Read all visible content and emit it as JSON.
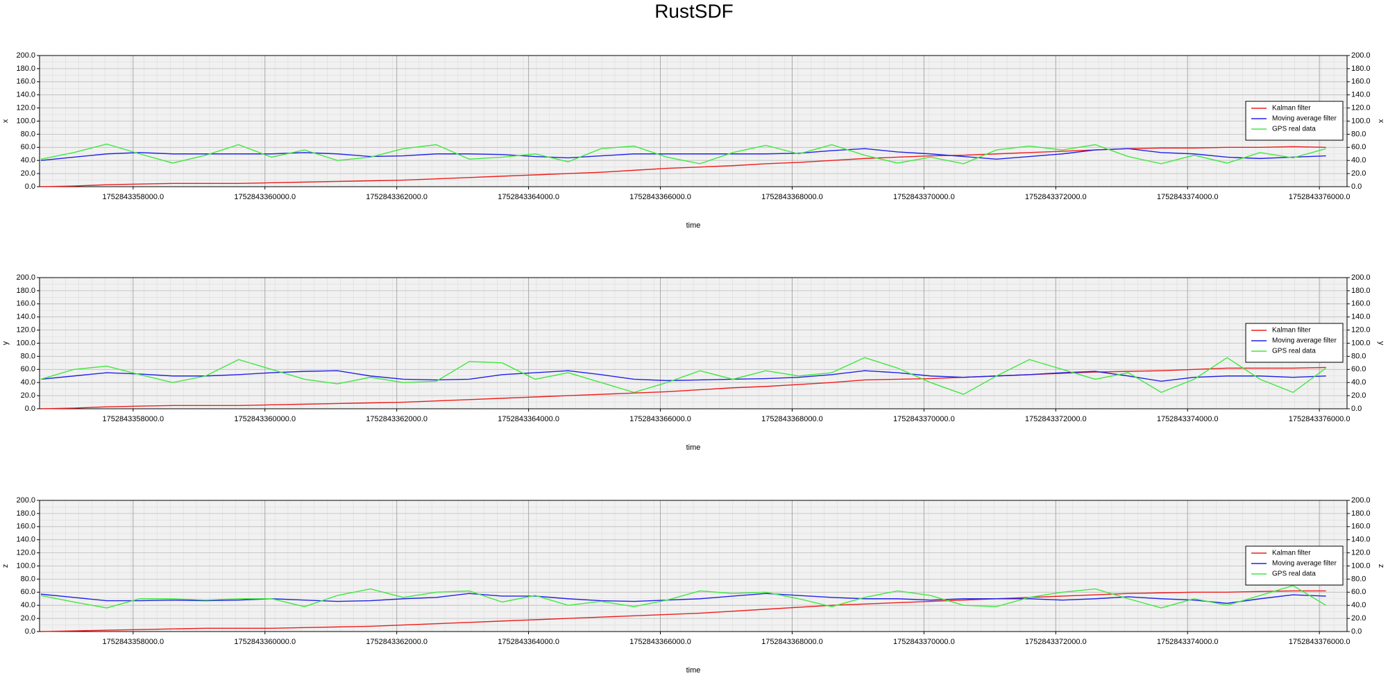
{
  "title": "RustSDF",
  "chart_data": [
    {
      "type": "line",
      "ylabel": "x",
      "y2label": "x",
      "xlabel": "time",
      "grid": true,
      "legend": "right",
      "x": [
        1752843356600,
        1752843357100,
        1752843357600,
        1752843358100,
        1752843358600,
        1752843359100,
        1752843359600,
        1752843360100,
        1752843360600,
        1752843361100,
        1752843361600,
        1752843362100,
        1752843362600,
        1752843363100,
        1752843363600,
        1752843364100,
        1752843364600,
        1752843365100,
        1752843365600,
        1752843366100,
        1752843366600,
        1752843367100,
        1752843367600,
        1752843368100,
        1752843368600,
        1752843369100,
        1752843369600,
        1752843370100,
        1752843370600,
        1752843371100,
        1752843371600,
        1752843372100,
        1752843372600,
        1752843373100,
        1752843373600,
        1752843374100,
        1752843374600,
        1752843375100,
        1752843375600,
        1752843376100
      ],
      "xlim": [
        1752843356580,
        1752843376420
      ],
      "xticks": [
        {
          "value": 1752843358000,
          "label": "1752843358000.0"
        },
        {
          "value": 1752843360000,
          "label": "1752843360000.0"
        },
        {
          "value": 1752843362000,
          "label": "1752843362000.0"
        },
        {
          "value": 1752843364000,
          "label": "1752843364000.0"
        },
        {
          "value": 1752843366000,
          "label": "1752843366000.0"
        },
        {
          "value": 1752843368000,
          "label": "1752843368000.0"
        },
        {
          "value": 1752843370000,
          "label": "1752843370000.0"
        },
        {
          "value": 1752843372000,
          "label": "1752843372000.0"
        },
        {
          "value": 1752843374000,
          "label": "1752843374000.0"
        },
        {
          "value": 1752843376000,
          "label": "1752843376000.0"
        }
      ],
      "ylim": [
        0,
        200
      ],
      "yticks": [
        {
          "value": 0,
          "label": "0.0"
        },
        {
          "value": 20,
          "label": "20.0"
        },
        {
          "value": 40,
          "label": "40.0"
        },
        {
          "value": 60,
          "label": "60.0"
        },
        {
          "value": 80,
          "label": "80.0"
        },
        {
          "value": 100,
          "label": "100.0"
        },
        {
          "value": 120,
          "label": "120.0"
        },
        {
          "value": 140,
          "label": "140.0"
        },
        {
          "value": 160,
          "label": "160.0"
        },
        {
          "value": 180,
          "label": "180.0"
        },
        {
          "value": 200,
          "label": "200.0"
        }
      ],
      "y2lim": [
        0,
        200
      ],
      "y2ticks": [
        {
          "value": 0,
          "label": "0.0"
        },
        {
          "value": 20,
          "label": "20.0"
        },
        {
          "value": 40,
          "label": "40.0"
        },
        {
          "value": 60,
          "label": "60.0"
        },
        {
          "value": 80,
          "label": "80.0"
        },
        {
          "value": 100,
          "label": "100.0"
        },
        {
          "value": 120,
          "label": "120.0"
        },
        {
          "value": 140,
          "label": "140.0"
        },
        {
          "value": 160,
          "label": "160.0"
        },
        {
          "value": 180,
          "label": "180.0"
        },
        {
          "value": 200,
          "label": "200.0"
        }
      ],
      "series": [
        {
          "name": "Kalman filter",
          "color": "#ee1c1c",
          "values": [
            0,
            1,
            3,
            4,
            5,
            5,
            5,
            6,
            7,
            8,
            9,
            10,
            12,
            14,
            16,
            18,
            20,
            22,
            25,
            28,
            30,
            32,
            35,
            37,
            40,
            43,
            45,
            47,
            48,
            50,
            52,
            54,
            56,
            58,
            59,
            59,
            60,
            60,
            61,
            60
          ]
        },
        {
          "name": "Moving average filter",
          "color": "#2020e8",
          "values": [
            40,
            45,
            50,
            52,
            50,
            50,
            50,
            50,
            52,
            50,
            46,
            47,
            50,
            50,
            49,
            46,
            44,
            47,
            50,
            50,
            50,
            50,
            50,
            51,
            55,
            58,
            53,
            50,
            46,
            42,
            46,
            50,
            56,
            58,
            52,
            50,
            45,
            43,
            45,
            47
          ]
        },
        {
          "name": "GPS real data",
          "color": "#3ee83e",
          "values": [
            42,
            52,
            65,
            50,
            36,
            48,
            64,
            45,
            56,
            40,
            45,
            58,
            64,
            42,
            45,
            50,
            38,
            58,
            62,
            45,
            35,
            52,
            63,
            50,
            64,
            48,
            36,
            45,
            35,
            56,
            62,
            56,
            64,
            46,
            35,
            48,
            36,
            52,
            44,
            58
          ]
        }
      ]
    },
    {
      "type": "line",
      "ylabel": "y",
      "y2label": "y",
      "xlabel": "time",
      "grid": true,
      "legend": "right",
      "x": [
        1752843356600,
        1752843357100,
        1752843357600,
        1752843358100,
        1752843358600,
        1752843359100,
        1752843359600,
        1752843360100,
        1752843360600,
        1752843361100,
        1752843361600,
        1752843362100,
        1752843362600,
        1752843363100,
        1752843363600,
        1752843364100,
        1752843364600,
        1752843365100,
        1752843365600,
        1752843366100,
        1752843366600,
        1752843367100,
        1752843367600,
        1752843368100,
        1752843368600,
        1752843369100,
        1752843369600,
        1752843370100,
        1752843370600,
        1752843371100,
        1752843371600,
        1752843372100,
        1752843372600,
        1752843373100,
        1752843373600,
        1752843374100,
        1752843374600,
        1752843375100,
        1752843375600,
        1752843376100
      ],
      "xlim": [
        1752843356580,
        1752843376420
      ],
      "xticks": [
        {
          "value": 1752843358000,
          "label": "1752843358000.0"
        },
        {
          "value": 1752843360000,
          "label": "1752843360000.0"
        },
        {
          "value": 1752843362000,
          "label": "1752843362000.0"
        },
        {
          "value": 1752843364000,
          "label": "1752843364000.0"
        },
        {
          "value": 1752843366000,
          "label": "1752843366000.0"
        },
        {
          "value": 1752843368000,
          "label": "1752843368000.0"
        },
        {
          "value": 1752843370000,
          "label": "1752843370000.0"
        },
        {
          "value": 1752843372000,
          "label": "1752843372000.0"
        },
        {
          "value": 1752843374000,
          "label": "1752843374000.0"
        },
        {
          "value": 1752843376000,
          "label": "1752843376000.0"
        }
      ],
      "ylim": [
        0,
        200
      ],
      "yticks": [
        {
          "value": 0,
          "label": "0.0"
        },
        {
          "value": 20,
          "label": "20.0"
        },
        {
          "value": 40,
          "label": "40.0"
        },
        {
          "value": 60,
          "label": "60.0"
        },
        {
          "value": 80,
          "label": "80.0"
        },
        {
          "value": 100,
          "label": "100.0"
        },
        {
          "value": 120,
          "label": "120.0"
        },
        {
          "value": 140,
          "label": "140.0"
        },
        {
          "value": 160,
          "label": "160.0"
        },
        {
          "value": 180,
          "label": "180.0"
        },
        {
          "value": 200,
          "label": "200.0"
        }
      ],
      "y2lim": [
        0,
        200
      ],
      "y2ticks": [
        {
          "value": 0,
          "label": "0.0"
        },
        {
          "value": 20,
          "label": "20.0"
        },
        {
          "value": 40,
          "label": "40.0"
        },
        {
          "value": 60,
          "label": "60.0"
        },
        {
          "value": 80,
          "label": "80.0"
        },
        {
          "value": 100,
          "label": "100.0"
        },
        {
          "value": 120,
          "label": "120.0"
        },
        {
          "value": 140,
          "label": "140.0"
        },
        {
          "value": 160,
          "label": "160.0"
        },
        {
          "value": 180,
          "label": "180.0"
        },
        {
          "value": 200,
          "label": "200.0"
        }
      ],
      "series": [
        {
          "name": "Kalman filter",
          "color": "#ee1c1c",
          "values": [
            0,
            1,
            3,
            4,
            5,
            5,
            5,
            6,
            7,
            8,
            9,
            10,
            12,
            14,
            16,
            18,
            20,
            22,
            24,
            26,
            29,
            32,
            34,
            37,
            40,
            44,
            45,
            46,
            48,
            50,
            52,
            54,
            56,
            57,
            58,
            60,
            62,
            62,
            62,
            63
          ]
        },
        {
          "name": "Moving average filter",
          "color": "#2020e8",
          "values": [
            45,
            50,
            55,
            53,
            50,
            50,
            52,
            55,
            57,
            58,
            50,
            45,
            44,
            45,
            52,
            55,
            58,
            52,
            45,
            43,
            44,
            45,
            46,
            48,
            52,
            58,
            55,
            50,
            48,
            50,
            52,
            55,
            57,
            50,
            42,
            48,
            50,
            50,
            48,
            50
          ]
        },
        {
          "name": "GPS real data",
          "color": "#3ee83e",
          "values": [
            45,
            60,
            65,
            52,
            40,
            50,
            75,
            60,
            45,
            38,
            48,
            40,
            42,
            72,
            70,
            45,
            55,
            40,
            25,
            40,
            58,
            45,
            58,
            50,
            55,
            78,
            62,
            40,
            22,
            50,
            75,
            60,
            45,
            55,
            25,
            45,
            78,
            45,
            25,
            62
          ]
        }
      ]
    },
    {
      "type": "line",
      "ylabel": "z",
      "y2label": "z",
      "xlabel": "time",
      "grid": true,
      "legend": "right",
      "x": [
        1752843356600,
        1752843357100,
        1752843357600,
        1752843358100,
        1752843358600,
        1752843359100,
        1752843359600,
        1752843360100,
        1752843360600,
        1752843361100,
        1752843361600,
        1752843362100,
        1752843362600,
        1752843363100,
        1752843363600,
        1752843364100,
        1752843364600,
        1752843365100,
        1752843365600,
        1752843366100,
        1752843366600,
        1752843367100,
        1752843367600,
        1752843368100,
        1752843368600,
        1752843369100,
        1752843369600,
        1752843370100,
        1752843370600,
        1752843371100,
        1752843371600,
        1752843372100,
        1752843372600,
        1752843373100,
        1752843373600,
        1752843374100,
        1752843374600,
        1752843375100,
        1752843375600,
        1752843376100
      ],
      "xlim": [
        1752843356580,
        1752843376420
      ],
      "xticks": [
        {
          "value": 1752843358000,
          "label": "1752843358000.0"
        },
        {
          "value": 1752843360000,
          "label": "1752843360000.0"
        },
        {
          "value": 1752843362000,
          "label": "1752843362000.0"
        },
        {
          "value": 1752843364000,
          "label": "1752843364000.0"
        },
        {
          "value": 1752843366000,
          "label": "1752843366000.0"
        },
        {
          "value": 1752843368000,
          "label": "1752843368000.0"
        },
        {
          "value": 1752843370000,
          "label": "1752843370000.0"
        },
        {
          "value": 1752843372000,
          "label": "1752843372000.0"
        },
        {
          "value": 1752843374000,
          "label": "1752843374000.0"
        },
        {
          "value": 1752843376000,
          "label": "1752843376000.0"
        }
      ],
      "ylim": [
        0,
        200
      ],
      "yticks": [
        {
          "value": 0,
          "label": "0.0"
        },
        {
          "value": 20,
          "label": "20.0"
        },
        {
          "value": 40,
          "label": "40.0"
        },
        {
          "value": 60,
          "label": "60.0"
        },
        {
          "value": 80,
          "label": "80.0"
        },
        {
          "value": 100,
          "label": "100.0"
        },
        {
          "value": 120,
          "label": "120.0"
        },
        {
          "value": 140,
          "label": "140.0"
        },
        {
          "value": 160,
          "label": "160.0"
        },
        {
          "value": 180,
          "label": "180.0"
        },
        {
          "value": 200,
          "label": "200.0"
        }
      ],
      "y2lim": [
        0,
        200
      ],
      "y2ticks": [
        {
          "value": 0,
          "label": "0.0"
        },
        {
          "value": 20,
          "label": "20.0"
        },
        {
          "value": 40,
          "label": "40.0"
        },
        {
          "value": 60,
          "label": "60.0"
        },
        {
          "value": 80,
          "label": "80.0"
        },
        {
          "value": 100,
          "label": "100.0"
        },
        {
          "value": 120,
          "label": "120.0"
        },
        {
          "value": 140,
          "label": "140.0"
        },
        {
          "value": 160,
          "label": "160.0"
        },
        {
          "value": 180,
          "label": "180.0"
        },
        {
          "value": 200,
          "label": "200.0"
        }
      ],
      "series": [
        {
          "name": "Kalman filter",
          "color": "#ee1c1c",
          "values": [
            0,
            1,
            2,
            3,
            4,
            5,
            5,
            5,
            6,
            7,
            8,
            10,
            12,
            14,
            16,
            18,
            20,
            22,
            24,
            26,
            28,
            31,
            34,
            37,
            40,
            42,
            44,
            46,
            48,
            50,
            52,
            54,
            56,
            58,
            59,
            60,
            60,
            61,
            62,
            62
          ]
        },
        {
          "name": "Moving average filter",
          "color": "#2020e8",
          "values": [
            57,
            52,
            47,
            47,
            48,
            47,
            48,
            50,
            48,
            46,
            47,
            50,
            52,
            58,
            54,
            54,
            50,
            47,
            46,
            48,
            50,
            54,
            58,
            55,
            52,
            50,
            50,
            48,
            50,
            50,
            50,
            48,
            50,
            53,
            50,
            48,
            43,
            50,
            56,
            54
          ]
        },
        {
          "name": "GPS real data",
          "color": "#3ee83e",
          "values": [
            55,
            45,
            36,
            50,
            50,
            48,
            50,
            50,
            38,
            55,
            65,
            52,
            60,
            62,
            45,
            55,
            40,
            46,
            38,
            48,
            62,
            58,
            60,
            50,
            38,
            52,
            62,
            55,
            40,
            38,
            52,
            60,
            65,
            50,
            36,
            50,
            40,
            55,
            70,
            40
          ]
        }
      ]
    }
  ]
}
